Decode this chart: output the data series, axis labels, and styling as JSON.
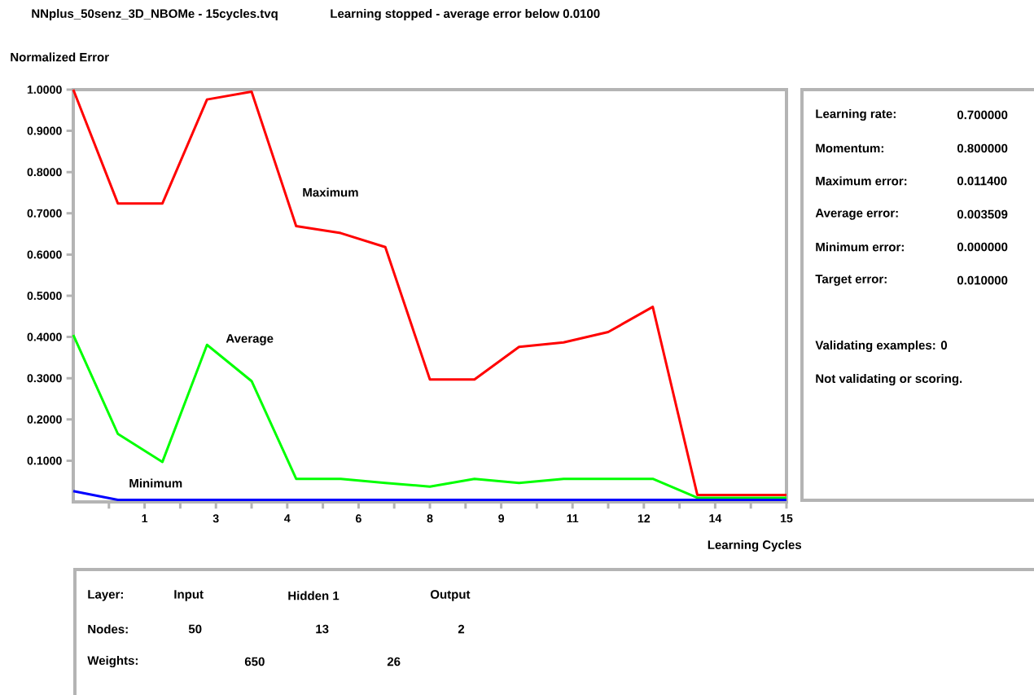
{
  "chart_data": {
    "type": "line",
    "title": "NNplus_50senz_3D_NBOMe - 15cycles.tvq",
    "subtitle": "Learning stopped - average error below 0.0100",
    "xlabel": "Learning Cycles",
    "ylabel": "Normalized Error",
    "x": [
      0,
      0.9375,
      1.875,
      2.8125,
      3.75,
      4.6875,
      5.625,
      6.5625,
      7.5,
      8.4375,
      9.375,
      10.3125,
      11.25,
      12.1875,
      13.125,
      14.0625,
      15
    ],
    "series": [
      {
        "name": "Maximum",
        "color": "#ff0000",
        "values": [
          1.0,
          0.724,
          0.724,
          0.976,
          0.995,
          0.669,
          0.652,
          0.618,
          0.297,
          0.297,
          0.376,
          0.387,
          0.412,
          0.473,
          0.017,
          0.017,
          0.017
        ]
      },
      {
        "name": "Average",
        "color": "#00ff00",
        "values": [
          0.405,
          0.165,
          0.097,
          0.381,
          0.293,
          0.056,
          0.056,
          0.046,
          0.037,
          0.056,
          0.046,
          0.056,
          0.056,
          0.056,
          0.01,
          0.01,
          0.01
        ]
      },
      {
        "name": "Minimum",
        "color": "#0000ff",
        "values": [
          0.026,
          0.005,
          0.005,
          0.005,
          0.005,
          0.005,
          0.005,
          0.005,
          0.005,
          0.005,
          0.005,
          0.005,
          0.005,
          0.005,
          0.005,
          0.005,
          0.005
        ]
      }
    ],
    "xlim": [
      0,
      15
    ],
    "xticks": [
      {
        "value": 0.75,
        "label": null
      },
      {
        "value": 1.5,
        "label": "1"
      },
      {
        "value": 2.25,
        "label": null
      },
      {
        "value": 3,
        "label": "3"
      },
      {
        "value": 3.75,
        "label": null
      },
      {
        "value": 4.5,
        "label": "4"
      },
      {
        "value": 5.25,
        "label": null
      },
      {
        "value": 6,
        "label": "6"
      },
      {
        "value": 6.75,
        "label": null
      },
      {
        "value": 7.5,
        "label": "8"
      },
      {
        "value": 8.25,
        "label": null
      },
      {
        "value": 9,
        "label": "9"
      },
      {
        "value": 9.75,
        "label": null
      },
      {
        "value": 10.5,
        "label": "11"
      },
      {
        "value": 11.25,
        "label": null
      },
      {
        "value": 12,
        "label": "12"
      },
      {
        "value": 12.75,
        "label": null
      },
      {
        "value": 13.5,
        "label": "14"
      },
      {
        "value": 14.25,
        "label": null
      },
      {
        "value": 15,
        "label": "15"
      }
    ],
    "ylim": [
      0,
      1
    ],
    "yticks": [
      {
        "value": 0.1,
        "label": "0.1000"
      },
      {
        "value": 0.2,
        "label": "0.2000"
      },
      {
        "value": 0.3,
        "label": "0.3000"
      },
      {
        "value": 0.4,
        "label": "0.4000"
      },
      {
        "value": 0.5,
        "label": "0.5000"
      },
      {
        "value": 0.6,
        "label": "0.6000"
      },
      {
        "value": 0.7,
        "label": "0.7000"
      },
      {
        "value": 0.8,
        "label": "0.8000"
      },
      {
        "value": 0.9,
        "label": "0.9000"
      },
      {
        "value": 1.0,
        "label": "1.0000"
      }
    ],
    "grid": false,
    "legend": false,
    "marker": "none",
    "line_style": "solid",
    "annotations": [
      "Learning rate:",
      "0.700000",
      "Momentum:",
      "0.800000",
      "Maximum error:",
      "0.011400",
      "Average error:",
      "0.003509",
      "Minimum error:",
      "0.000000",
      "Target error:",
      "0.010000",
      "Validating examples:  0",
      "Not validating or scoring.",
      "Layer:",
      "Input",
      "Hidden 1",
      "Output",
      "Nodes:",
      "50",
      "13",
      "2",
      "Weights:",
      "650",
      "26"
    ]
  }
}
